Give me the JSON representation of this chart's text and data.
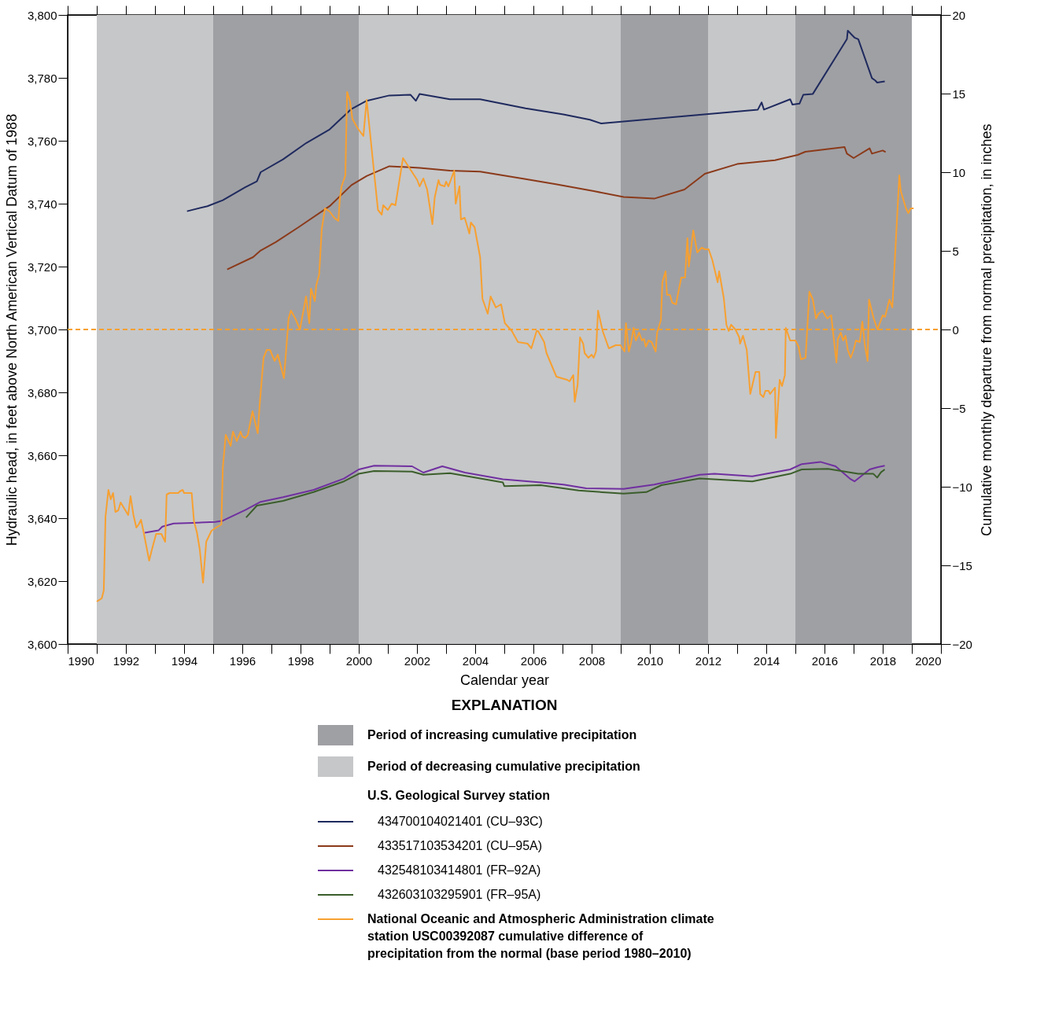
{
  "chart_data": {
    "type": "line",
    "xlabel": "Calendar year",
    "ylabel": "Hydraulic head, in feet above North American Vertical Datum of 1988",
    "y2label": "Cumulative monthly departure from normal precipitation, in inches",
    "xlim": [
      1990,
      2020
    ],
    "xticks": [
      1990,
      {
        "value": 1991,
        "label": null
      },
      1992,
      {
        "value": 1993,
        "label": null
      },
      1994,
      {
        "value": 1995,
        "label": null
      },
      1996,
      {
        "value": 1997,
        "label": null
      },
      1998,
      {
        "value": 1999,
        "label": null
      },
      2000,
      {
        "value": 2001,
        "label": null
      },
      2002,
      {
        "value": 2003,
        "label": null
      },
      2004,
      {
        "value": 2005,
        "label": null
      },
      2006,
      {
        "value": 2007,
        "label": null
      },
      2008,
      {
        "value": 2009,
        "label": null
      },
      2010,
      {
        "value": 2011,
        "label": null
      },
      2012,
      {
        "value": 2013,
        "label": null
      },
      2014,
      {
        "value": 2015,
        "label": null
      },
      2016,
      {
        "value": 2017,
        "label": null
      },
      2018,
      {
        "value": 2019,
        "label": null
      },
      2020
    ],
    "ylim": [
      3600,
      3800
    ],
    "yticks": [
      {
        "value": 3600,
        "label": "3,600"
      },
      {
        "value": 3620,
        "label": "3,620"
      },
      {
        "value": 3640,
        "label": "3,640"
      },
      {
        "value": 3660,
        "label": "3,660"
      },
      {
        "value": 3680,
        "label": "3,680"
      },
      {
        "value": 3700,
        "label": "3,700"
      },
      {
        "value": 3720,
        "label": "3,720"
      },
      {
        "value": 3740,
        "label": "3,740"
      },
      {
        "value": 3760,
        "label": "3,760"
      },
      {
        "value": 3780,
        "label": "3,780"
      },
      {
        "value": 3800,
        "label": "3,800"
      }
    ],
    "y2lim": [
      -20,
      20
    ],
    "y2ticks": [
      {
        "value": -20,
        "label": "−20"
      },
      {
        "value": -15,
        "label": "−15"
      },
      {
        "value": -10,
        "label": "−10"
      },
      {
        "value": -5,
        "label": "−5"
      },
      0,
      5,
      10,
      15,
      20
    ],
    "legend": "bottom",
    "legend_title": "EXPLANATION",
    "annotations": [
      "U.S. Geological Survey station"
    ],
    "bands": [
      {
        "axis": "x",
        "from": 1991,
        "to": 1995,
        "label": "Period of decreasing cumulative precipitation",
        "color": "#c6c7c9"
      },
      {
        "axis": "x",
        "from": 1995,
        "to": 2000,
        "label": "Period of increasing cumulative precipitation",
        "color": "#9fa0a4"
      },
      {
        "axis": "x",
        "from": 2000,
        "to": 2009,
        "color": "#c6c7c9"
      },
      {
        "axis": "x",
        "from": 2009,
        "to": 2012,
        "color": "#9fa0a4"
      },
      {
        "axis": "x",
        "from": 2012,
        "to": 2015,
        "color": "#c6c7c9"
      },
      {
        "axis": "x",
        "from": 2015,
        "to": 2019,
        "color": "#9fa0a4"
      }
    ],
    "ref_lines": [
      {
        "axis": "y2",
        "value": 0,
        "color": "#f7a030",
        "line_style": "dashed"
      }
    ],
    "series": [
      {
        "name": "434700104021401 (CU–93C)",
        "color": "#1f2a5e",
        "x": [
          1994.1,
          1994.8,
          1995.33,
          1996.1,
          1996.5,
          1996.63,
          1997.4,
          1998.2,
          1999.0,
          1999.75,
          2000.27,
          2001.05,
          2001.78,
          2001.96,
          2002.09,
          2003.13,
          2004.17,
          2005.73,
          2007.03,
          2007.94,
          2008.33,
          2013.71,
          2013.84,
          2013.92,
          2014.82,
          2014.9,
          2015.14,
          2015.27,
          2015.6,
          2016.77,
          2016.8,
          2017.03,
          2017.16,
          2017.63,
          2017.74,
          2017.81,
          2018.07
        ],
        "values": [
          3737.6,
          3739.2,
          3741.1,
          3745.2,
          3747.1,
          3750.0,
          3754.1,
          3759.3,
          3763.6,
          3770.1,
          3772.7,
          3774.4,
          3774.6,
          3772.7,
          3774.9,
          3773.2,
          3773.2,
          3770.3,
          3768.4,
          3766.7,
          3765.5,
          3769.9,
          3772.2,
          3769.9,
          3773.2,
          3771.5,
          3771.8,
          3774.6,
          3774.9,
          3792.3,
          3795.0,
          3792.8,
          3792.3,
          3779.9,
          3779.2,
          3778.5,
          3778.9
        ]
      },
      {
        "name": "433517103534201 (CU–95A)",
        "color": "#8b3a1a",
        "x": [
          1995.48,
          1996.37,
          1996.63,
          1997.15,
          1997.93,
          1999.0,
          1999.75,
          2000.27,
          2001.05,
          2002.09,
          2003.13,
          2004.17,
          2005.73,
          2006.77,
          2008.07,
          2009.1,
          2010.15,
          2011.19,
          2011.89,
          2013.0,
          2014.3,
          2015.08,
          2015.34,
          2016.69,
          2016.77,
          2017.0,
          2017.55,
          2017.63,
          2018.0,
          2018.1
        ],
        "values": [
          3719.1,
          3723.0,
          3725.1,
          3727.8,
          3732.5,
          3739.2,
          3745.9,
          3748.8,
          3751.9,
          3751.4,
          3750.5,
          3750.2,
          3747.8,
          3746.2,
          3744.0,
          3742.1,
          3741.6,
          3744.5,
          3749.5,
          3752.6,
          3753.8,
          3755.5,
          3756.5,
          3758.0,
          3755.9,
          3754.5,
          3757.6,
          3755.9,
          3756.9,
          3756.4
        ]
      },
      {
        "name": "432548103414801 (FR–92A)",
        "color": "#7030a0",
        "x": [
          1992.65,
          1993.12,
          1993.25,
          1993.64,
          1994.29,
          1995.07,
          1995.33,
          1996.1,
          1996.63,
          1997.4,
          1998.45,
          1999.49,
          2000.0,
          2000.53,
          2001.83,
          2002.22,
          2002.87,
          2003.65,
          2004.95,
          2006.25,
          2007.03,
          2007.81,
          2009.1,
          2010.15,
          2011.71,
          2012.22,
          2013.52,
          2014.82,
          2015.22,
          2015.86,
          2016.38,
          2016.9,
          2017.03,
          2017.55,
          2017.81,
          2018.07
        ],
        "values": [
          3635.4,
          3636.1,
          3637.3,
          3638.3,
          3638.5,
          3638.8,
          3639.2,
          3642.6,
          3645.2,
          3646.7,
          3649.0,
          3652.6,
          3655.5,
          3656.7,
          3656.5,
          3654.5,
          3656.5,
          3654.5,
          3652.4,
          3651.4,
          3650.7,
          3649.5,
          3649.3,
          3650.7,
          3653.8,
          3654.1,
          3653.3,
          3655.5,
          3657.2,
          3657.9,
          3656.5,
          3652.4,
          3651.7,
          3655.5,
          3656.2,
          3656.7
        ]
      },
      {
        "name": "432603103295901 (FR–95A)",
        "color": "#3b5e2b",
        "x": [
          1996.13,
          1996.5,
          1997.4,
          1998.45,
          1999.49,
          2000.0,
          2000.53,
          2001.83,
          2002.22,
          2003.13,
          2004.95,
          2005.0,
          2006.25,
          2007.55,
          2009.1,
          2009.88,
          2010.4,
          2011.71,
          2013.52,
          2014.82,
          2015.22,
          2016.12,
          2017.16,
          2017.68,
          2017.81,
          2017.94,
          2018.07
        ],
        "values": [
          3640.2,
          3644.0,
          3645.5,
          3648.3,
          3651.7,
          3654.1,
          3655.0,
          3654.8,
          3653.8,
          3654.3,
          3651.4,
          3650.2,
          3650.5,
          3648.8,
          3647.8,
          3648.3,
          3650.5,
          3652.6,
          3651.7,
          3654.1,
          3655.5,
          3655.7,
          3654.1,
          3654.1,
          3652.9,
          3654.6,
          3655.5
        ]
      },
      {
        "name": "National Oceanic and Atmospheric Administration climate\nstation USC00392087 cumulative difference of\nprecipitation from the normal (base period 1980–2010)",
        "color": "#f7a030",
        "axis": "y2",
        "x": [
          1991.0,
          1991.17,
          1991.24,
          1991.3,
          1991.4,
          1991.48,
          1991.56,
          1991.64,
          1991.74,
          1991.82,
          1992.08,
          1992.16,
          1992.26,
          1992.36,
          1992.44,
          1992.52,
          1992.6,
          1992.8,
          1992.88,
          1992.98,
          1993.04,
          1993.22,
          1993.35,
          1993.4,
          1993.5,
          1993.8,
          1993.85,
          1993.95,
          1994.0,
          1994.26,
          1994.34,
          1994.44,
          1994.54,
          1994.65,
          1994.76,
          1994.94,
          1995.1,
          1995.28,
          1995.33,
          1995.43,
          1995.6,
          1995.68,
          1995.81,
          1995.94,
          1996.0,
          1996.1,
          1996.19,
          1996.35,
          1996.53,
          1996.6,
          1996.73,
          1996.84,
          1996.95,
          1997.11,
          1997.22,
          1997.43,
          1997.49,
          1997.59,
          1997.67,
          1997.82,
          1997.98,
          1998.19,
          1998.3,
          1998.36,
          1998.49,
          1998.54,
          1998.64,
          1998.73,
          1998.84,
          1999.0,
          1999.16,
          1999.3,
          1999.35,
          1999.41,
          1999.54,
          1999.6,
          1999.7,
          1999.78,
          1999.93,
          2000.0,
          2000.16,
          2000.27,
          2000.66,
          2000.79,
          2000.84,
          2001.0,
          2001.13,
          2001.26,
          2001.52,
          2002.01,
          2002.09,
          2002.22,
          2002.35,
          2002.53,
          2002.61,
          2002.74,
          2002.79,
          2002.95,
          2003.0,
          2003.08,
          2003.28,
          2003.33,
          2003.46,
          2003.51,
          2003.64,
          2003.8,
          2003.85,
          2003.98,
          2004.17,
          2004.25,
          2004.43,
          2004.53,
          2004.71,
          2004.89,
          2005.02,
          2005.26,
          2005.47,
          2005.8,
          2005.93,
          2006.11,
          2006.16,
          2006.37,
          2006.45,
          2006.79,
          2006.97,
          2007.16,
          2007.24,
          2007.37,
          2007.42,
          2007.52,
          2007.6,
          2007.71,
          2007.76,
          2007.89,
          2008.0,
          2008.07,
          2008.15,
          2008.22,
          2008.38,
          2008.59,
          2008.83,
          2008.99,
          2009.13,
          2009.18,
          2009.28,
          2009.36,
          2009.44,
          2009.52,
          2009.63,
          2009.73,
          2009.8,
          2009.86,
          2009.96,
          2010.06,
          2010.2,
          2010.25,
          2010.38,
          2010.43,
          2010.54,
          2010.59,
          2010.69,
          2010.77,
          2010.9,
          2010.95,
          2011.08,
          2011.21,
          2011.29,
          2011.34,
          2011.49,
          2011.63,
          2011.78,
          2011.89,
          2012.02,
          2012.15,
          2012.2,
          2012.33,
          2012.38,
          2012.54,
          2012.63,
          2012.71,
          2012.79,
          2012.94,
          2013.07,
          2013.1,
          2013.2,
          2013.33,
          2013.45,
          2013.63,
          2013.76,
          2013.79,
          2013.9,
          2013.97,
          2014.08,
          2014.13,
          2014.3,
          2014.33,
          2014.46,
          2014.54,
          2014.64,
          2014.67,
          2014.82,
          2014.9,
          2015.0,
          2015.11,
          2015.19,
          2015.35,
          2015.48,
          2015.6,
          2015.71,
          2015.79,
          2015.94,
          2016.02,
          2016.1,
          2016.23,
          2016.41,
          2016.46,
          2016.56,
          2016.64,
          2016.72,
          2016.8,
          2016.9,
          2017.0,
          2017.08,
          2017.21,
          2017.3,
          2017.38,
          2017.48,
          2017.53,
          2017.69,
          2017.82,
          2018.0,
          2018.08,
          2018.23,
          2018.33,
          2018.57,
          2018.62,
          2018.8,
          2018.88,
          2018.96,
          2019.06
        ],
        "values": [
          -17.3,
          -17.1,
          -16.6,
          -11.9,
          -10.2,
          -10.8,
          -10.4,
          -11.6,
          -11.5,
          -11.0,
          -11.8,
          -10.6,
          -11.8,
          -12.6,
          -12.4,
          -12.1,
          -12.8,
          -14.7,
          -14.1,
          -13.4,
          -13.0,
          -13.0,
          -13.5,
          -10.5,
          -10.4,
          -10.4,
          -10.3,
          -10.2,
          -10.4,
          -10.4,
          -12.2,
          -12.9,
          -14.0,
          -16.1,
          -13.5,
          -12.8,
          -12.6,
          -12.4,
          -8.8,
          -6.7,
          -7.4,
          -6.5,
          -7.1,
          -6.5,
          -6.8,
          -6.9,
          -6.7,
          -5.2,
          -6.6,
          -4.7,
          -1.8,
          -1.3,
          -1.3,
          -2.0,
          -1.6,
          -3.1,
          -1.7,
          0.7,
          1.2,
          0.7,
          0.0,
          2.1,
          0.4,
          2.6,
          1.8,
          2.8,
          3.5,
          6.4,
          7.7,
          7.5,
          7.1,
          6.9,
          8.3,
          9.1,
          9.8,
          15.1,
          14.5,
          13.4,
          12.9,
          12.7,
          12.3,
          14.6,
          7.6,
          7.3,
          7.9,
          7.6,
          8.0,
          7.9,
          10.9,
          9.5,
          9.1,
          9.6,
          8.9,
          6.7,
          8.4,
          9.5,
          9.2,
          9.1,
          9.4,
          9.1,
          10.1,
          8.0,
          9.1,
          7.0,
          7.1,
          6.1,
          6.8,
          6.5,
          4.6,
          1.95,
          1.0,
          2.1,
          1.4,
          1.6,
          0.4,
          -0.1,
          -0.8,
          -0.9,
          -1.2,
          -0.1,
          -0.1,
          -0.8,
          -1.5,
          -3.0,
          -3.1,
          -3.2,
          -3.3,
          -2.9,
          -4.6,
          -3.5,
          -0.5,
          -0.9,
          -1.5,
          -1.8,
          -1.6,
          -1.8,
          -1.4,
          1.2,
          -0.1,
          -1.2,
          -1.0,
          -1.0,
          -1.4,
          0.4,
          -1.4,
          -0.8,
          0.1,
          -0.7,
          -0.2,
          -0.7,
          -0.6,
          -1.1,
          -0.7,
          -0.8,
          -1.4,
          -0.2,
          0.6,
          3.0,
          3.7,
          2.2,
          2.2,
          1.7,
          1.6,
          2.1,
          3.3,
          3.3,
          5.8,
          4.0,
          6.3,
          4.9,
          5.2,
          5.1,
          5.1,
          4.4,
          4.0,
          3.0,
          3.7,
          2.0,
          0.3,
          -0.1,
          0.3,
          0.0,
          -0.5,
          -0.9,
          -0.4,
          -1.3,
          -4.1,
          -2.7,
          -2.7,
          -4.1,
          -4.3,
          -3.9,
          -3.9,
          -4.1,
          -3.7,
          -6.9,
          -3.2,
          -3.6,
          -2.9,
          0.1,
          -0.7,
          -0.7,
          -0.7,
          -1.1,
          -1.9,
          -1.8,
          2.4,
          1.9,
          0.7,
          1.0,
          1.2,
          0.9,
          0.7,
          0.9,
          -2.1,
          -0.6,
          -0.2,
          -0.7,
          -0.4,
          -1.3,
          -1.8,
          -1.3,
          -0.7,
          -0.8,
          0.5,
          -0.9,
          -2.0,
          1.9,
          0.7,
          0.0,
          0.9,
          0.8,
          1.9,
          1.4,
          9.8,
          8.8,
          7.7,
          7.4,
          7.7,
          7.7
        ]
      }
    ]
  }
}
